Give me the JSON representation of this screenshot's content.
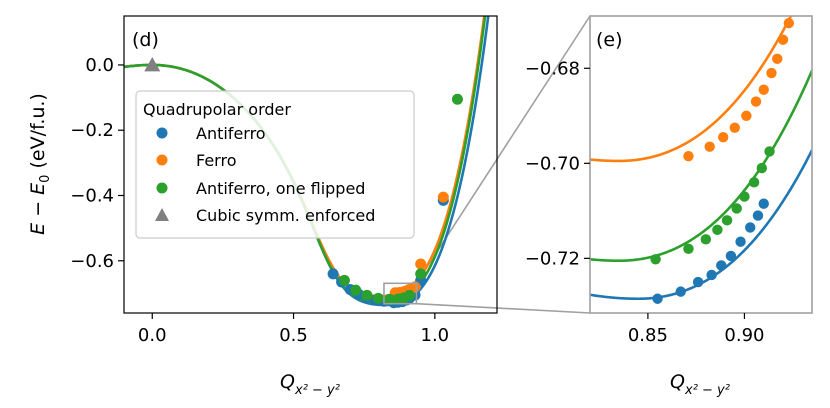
{
  "chart_data": [
    {
      "panel_label": "(d)",
      "type": "scatter",
      "xlabel": "Q_{x²−y²}",
      "ylabel": "E − E_0 (eV/f.u.)",
      "xlim": [
        -0.1,
        1.22
      ],
      "ylim": [
        -0.76,
        0.15
      ],
      "x_ticks": [
        0.0,
        0.5,
        1.0
      ],
      "x_tick_labels": [
        "0.0",
        "0.5",
        "1.0"
      ],
      "y_ticks": [
        0.0,
        -0.2,
        -0.4,
        -0.6
      ],
      "y_tick_labels": [
        "0.0",
        "−0.2",
        "−0.4",
        "−0.6"
      ],
      "grid": false,
      "legend": {
        "title": "Quadrupolar order",
        "placement": "center-left",
        "entries": [
          {
            "label": "Antiferro",
            "marker": "circle",
            "color": "#1f77b4"
          },
          {
            "label": "Ferro",
            "marker": "circle",
            "color": "#ff7f0e"
          },
          {
            "label": "Antiferro, one flipped",
            "marker": "circle",
            "color": "#2ca02c"
          },
          {
            "label": "Cubic symm. enforced",
            "marker": "triangle",
            "color": "#808080"
          }
        ]
      },
      "series": [
        {
          "name": "Antiferro",
          "color": "#1f77b4",
          "points": [
            [
              0.64,
              -0.64
            ],
            [
              0.67,
              -0.665
            ],
            [
              0.7,
              -0.688
            ],
            [
              0.73,
              -0.702
            ],
            [
              0.76,
              -0.712
            ],
            [
              0.79,
              -0.72
            ],
            [
              0.82,
              -0.724
            ],
            [
              0.855,
              -0.7285
            ],
            [
              0.87,
              -0.727
            ],
            [
              0.885,
              -0.725
            ],
            [
              0.9,
              -0.72
            ],
            [
              0.91,
              -0.715
            ],
            [
              0.93,
              -0.705
            ],
            [
              0.95,
              -0.66
            ],
            [
              1.03,
              -0.415
            ]
          ]
        },
        {
          "name": "Ferro",
          "color": "#ff7f0e",
          "points": [
            [
              0.86,
              -0.698
            ],
            [
              0.875,
              -0.697
            ],
            [
              0.89,
              -0.695
            ],
            [
              0.9,
              -0.692
            ],
            [
              0.91,
              -0.688
            ],
            [
              0.92,
              -0.684
            ],
            [
              0.93,
              -0.68
            ],
            [
              0.95,
              -0.61
            ],
            [
              1.03,
              -0.405
            ]
          ]
        },
        {
          "name": "Antiferro, one flipped",
          "color": "#2ca02c",
          "points": [
            [
              0.68,
              -0.66
            ],
            [
              0.72,
              -0.69
            ],
            [
              0.76,
              -0.706
            ],
            [
              0.8,
              -0.715
            ],
            [
              0.84,
              -0.718
            ],
            [
              0.87,
              -0.717
            ],
            [
              0.89,
              -0.714
            ],
            [
              0.91,
              -0.706
            ],
            [
              0.95,
              -0.64
            ],
            [
              1.08,
              -0.105
            ]
          ]
        },
        {
          "name": "Cubic symm. enforced",
          "color": "#808080",
          "marker": "triangle",
          "points": [
            [
              0.0,
              0.0
            ]
          ]
        }
      ],
      "fits": [
        {
          "name": "Antiferro",
          "color": "#1f77b4",
          "min_x": 0.845,
          "min_y": -0.7285
        },
        {
          "name": "Ferro",
          "color": "#ff7f0e",
          "min_x": 0.835,
          "min_y": -0.6995
        },
        {
          "name": "Antiferro, one flipped",
          "color": "#2ca02c",
          "min_x": 0.835,
          "min_y": -0.7205
        }
      ]
    },
    {
      "panel_label": "(e)",
      "type": "scatter",
      "xlabel": "Q_{x²−y²}",
      "xlim": [
        0.82,
        0.935
      ],
      "ylim": [
        -0.7315,
        -0.669
      ],
      "x_ticks": [
        0.85,
        0.9
      ],
      "x_tick_labels": [
        "0.85",
        "0.90"
      ],
      "y_ticks": [
        -0.68,
        -0.7,
        -0.72
      ],
      "y_tick_labels": [
        "−0.68",
        "−0.70",
        "−0.72"
      ],
      "grid": false,
      "series": [
        {
          "name": "Antiferro",
          "color": "#1f77b4",
          "points": [
            [
              0.855,
              -0.7285
            ],
            [
              0.867,
              -0.727
            ],
            [
              0.876,
              -0.725
            ],
            [
              0.883,
              -0.7235
            ],
            [
              0.888,
              -0.7215
            ],
            [
              0.893,
              -0.7195
            ],
            [
              0.898,
              -0.7165
            ],
            [
              0.903,
              -0.7135
            ],
            [
              0.907,
              -0.711
            ],
            [
              0.91,
              -0.7085
            ]
          ]
        },
        {
          "name": "Ferro",
          "color": "#ff7f0e",
          "points": [
            [
              0.871,
              -0.6985
            ],
            [
              0.882,
              -0.6965
            ],
            [
              0.889,
              -0.6945
            ],
            [
              0.895,
              -0.6925
            ],
            [
              0.901,
              -0.69
            ],
            [
              0.906,
              -0.687
            ],
            [
              0.91,
              -0.6845
            ],
            [
              0.914,
              -0.681
            ],
            [
              0.917,
              -0.678
            ],
            [
              0.92,
              -0.674
            ],
            [
              0.923,
              -0.6705
            ]
          ]
        },
        {
          "name": "Antiferro, one flipped",
          "color": "#2ca02c",
          "points": [
            [
              0.854,
              -0.7202
            ],
            [
              0.871,
              -0.718
            ],
            [
              0.88,
              -0.716
            ],
            [
              0.886,
              -0.714
            ],
            [
              0.891,
              -0.712
            ],
            [
              0.896,
              -0.7095
            ],
            [
              0.9,
              -0.707
            ],
            [
              0.905,
              -0.704
            ],
            [
              0.909,
              -0.701
            ],
            [
              0.913,
              -0.6975
            ]
          ]
        }
      ],
      "fits": [
        {
          "name": "Antiferro",
          "color": "#1f77b4",
          "min_x": 0.845,
          "min_y": -0.7285
        },
        {
          "name": "Ferro",
          "color": "#ff7f0e",
          "min_x": 0.835,
          "min_y": -0.6995
        },
        {
          "name": "Antiferro, one flipped",
          "color": "#2ca02c",
          "min_x": 0.835,
          "min_y": -0.7205
        }
      ]
    }
  ]
}
